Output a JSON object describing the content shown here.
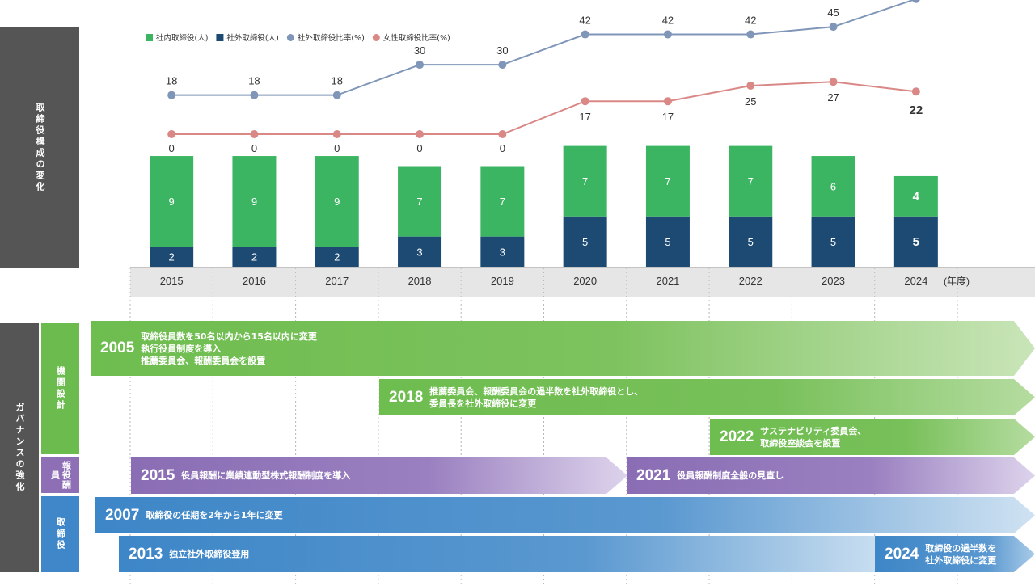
{
  "side_labels": {
    "chart": "取締役構成の変化",
    "governance": "ガバナンスの強化"
  },
  "categories": {
    "kikan": "機関設計",
    "hoshu": "報役酬員",
    "torishimari": "取締役"
  },
  "chart_data": {
    "type": "bar",
    "stacked": true,
    "categories": [
      "2015",
      "2016",
      "2017",
      "2018",
      "2019",
      "2020",
      "2021",
      "2022",
      "2023",
      "2024"
    ],
    "x_unit": "(年度)",
    "series": [
      {
        "name": "社内取締役(人)",
        "type": "bar",
        "color": "#3cb563",
        "values": [
          9,
          9,
          9,
          7,
          7,
          7,
          7,
          7,
          6,
          4
        ]
      },
      {
        "name": "社外取締役(人)",
        "type": "bar",
        "color": "#1c4a72",
        "values": [
          2,
          2,
          2,
          3,
          3,
          5,
          5,
          5,
          5,
          5
        ]
      },
      {
        "name": "社外取締役比率(%)",
        "type": "line",
        "color": "#8096b8",
        "values": [
          18,
          18,
          18,
          30,
          30,
          42,
          42,
          42,
          45,
          56
        ]
      },
      {
        "name": "女性取締役比率(%)",
        "type": "line",
        "color": "#d98886",
        "values": [
          0,
          0,
          0,
          0,
          0,
          17,
          17,
          25,
          27,
          22
        ]
      }
    ],
    "legend_position": "top-left"
  },
  "timeline": [
    {
      "id": "a2005",
      "year": "2005",
      "lines": [
        "取締役員数を50名以内から15名以内に変更",
        "執行役員制度を導入",
        "推薦委員会、報酬委員会を設置"
      ]
    },
    {
      "id": "a2018",
      "year": "2018",
      "lines": [
        "推薦委員会、報酬委員会の過半数を社外取締役とし、",
        "委員長を社外取締役に変更"
      ]
    },
    {
      "id": "a2022",
      "year": "2022",
      "lines": [
        "サステナビリティ委員会、",
        "取締役座談会を設置"
      ]
    },
    {
      "id": "a2015",
      "year": "2015",
      "lines": [
        "役員報酬に業績連動型株式報酬制度を導入"
      ]
    },
    {
      "id": "a2021",
      "year": "2021",
      "lines": [
        "役員報酬制度全般の見直し"
      ]
    },
    {
      "id": "a2007",
      "year": "2007",
      "lines": [
        "取締役の任期を2年から1年に変更"
      ]
    },
    {
      "id": "a2013",
      "year": "2013",
      "lines": [
        "独立社外取締役登用"
      ]
    },
    {
      "id": "a2024",
      "year": "2024",
      "lines": [
        "取締役の過半数を",
        "社外取締役に変更"
      ]
    }
  ]
}
